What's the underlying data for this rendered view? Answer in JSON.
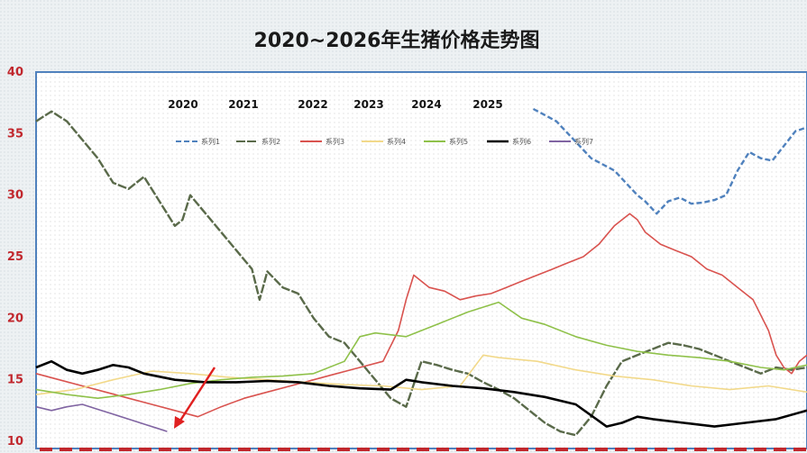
{
  "chart_data": {
    "type": "line",
    "title": "2020~2026年生猪价格走势图",
    "ylim": [
      10,
      40
    ],
    "y_ticks": [
      "10",
      "15",
      "20",
      "25",
      "30",
      "35",
      "40"
    ],
    "year_labels": [
      "2020",
      "2021",
      "2022",
      "2023",
      "2024",
      "2025"
    ],
    "x_range": [
      0,
      100
    ],
    "series": [
      {
        "name": "系列1",
        "color": "#4f81bd",
        "dash": "6,3",
        "x": [
          64.5,
          66,
          67.5,
          69,
          70.5,
          72,
          73.5,
          75,
          76.5,
          78,
          79,
          80.5,
          82,
          83.5,
          85,
          86.5,
          88,
          89.5,
          91,
          92.5,
          94,
          95.5,
          97,
          98.5,
          100
        ],
        "y": [
          37,
          36.5,
          36,
          35,
          34,
          33,
          32.5,
          32,
          31,
          30,
          29.5,
          28.5,
          29.5,
          29.8,
          29.3,
          29.4,
          29.6,
          30,
          32,
          33.5,
          33,
          32.8,
          34,
          35.2,
          35.5
        ]
      },
      {
        "name": "系列2",
        "color": "#5a6a4a",
        "dash": "10,2",
        "x": [
          0,
          2,
          4,
          6,
          8,
          10,
          12,
          14,
          16,
          18,
          19,
          20,
          22,
          24,
          26,
          28,
          29,
          30,
          32,
          34,
          36,
          38,
          40,
          42,
          44,
          46,
          48,
          50,
          52,
          54,
          56,
          58,
          60,
          62,
          64,
          66,
          68,
          70,
          72,
          74,
          76,
          78,
          80,
          82,
          84,
          86,
          88,
          90,
          92,
          94,
          96,
          98,
          100
        ],
        "y": [
          36,
          36.8,
          36,
          34.5,
          33,
          31,
          30.5,
          31.5,
          29.5,
          27.5,
          28,
          30,
          28.5,
          27,
          25.5,
          24,
          21.5,
          23.8,
          22.5,
          22,
          20,
          18.5,
          18,
          16.5,
          15,
          13.5,
          12.8,
          16.5,
          16.2,
          15.8,
          15.5,
          14.8,
          14.2,
          13.5,
          12.5,
          11.5,
          10.8,
          10.5,
          12,
          14.5,
          16.5,
          17,
          17.5,
          18,
          17.8,
          17.5,
          17,
          16.5,
          16,
          15.5,
          16,
          15.8,
          16
        ]
      },
      {
        "name": "系列3",
        "color": "#d9534f",
        "dash": "",
        "x": [
          0,
          3,
          6,
          9,
          12,
          15,
          18,
          21,
          24,
          27,
          30,
          33,
          36,
          39,
          42,
          45,
          47,
          48,
          49,
          51,
          53,
          55,
          57,
          59,
          61,
          63,
          65,
          67,
          69,
          71,
          73,
          75,
          77,
          78,
          79,
          81,
          83,
          85,
          87,
          89,
          91,
          93,
          95,
          96,
          97,
          98,
          99,
          100
        ],
        "y": [
          15.5,
          15,
          14.5,
          14,
          13.5,
          13,
          12.5,
          12,
          12.8,
          13.5,
          14,
          14.5,
          15,
          15.5,
          16,
          16.5,
          19,
          21.5,
          23.5,
          22.5,
          22.2,
          21.5,
          21.8,
          22,
          22.5,
          23,
          23.5,
          24,
          24.5,
          25,
          26,
          27.5,
          28.5,
          28,
          27,
          26,
          25.5,
          25,
          24,
          23.5,
          22.5,
          21.5,
          19,
          17,
          16,
          15.5,
          16.5,
          17
        ]
      },
      {
        "name": "系列4",
        "color": "#f2d98a",
        "dash": "",
        "x": [
          0,
          5,
          10,
          15,
          20,
          25,
          30,
          35,
          40,
          45,
          50,
          55,
          58,
          60,
          65,
          70,
          75,
          80,
          85,
          90,
          95,
          100
        ],
        "y": [
          13.8,
          14.2,
          15,
          15.7,
          15.5,
          15.2,
          15,
          14.8,
          14.6,
          14.5,
          14.2,
          14.5,
          17,
          16.8,
          16.5,
          15.8,
          15.3,
          15,
          14.5,
          14.2,
          14.5,
          14
        ]
      },
      {
        "name": "系列5",
        "color": "#8fc14a",
        "dash": "",
        "x": [
          0,
          4,
          8,
          12,
          16,
          20,
          24,
          28,
          32,
          36,
          40,
          42,
          44,
          48,
          52,
          56,
          60,
          63,
          66,
          70,
          74,
          78,
          82,
          86,
          90,
          94,
          97,
          100
        ],
        "y": [
          14.2,
          13.8,
          13.5,
          13.8,
          14.2,
          14.7,
          15,
          15.2,
          15.3,
          15.5,
          16.5,
          18.5,
          18.8,
          18.5,
          19.5,
          20.5,
          21.3,
          20,
          19.5,
          18.5,
          17.8,
          17.3,
          17,
          16.8,
          16.5,
          16,
          15.8,
          16.2
        ]
      },
      {
        "name": "系列6",
        "color": "#000000",
        "dash": "",
        "x": [
          0,
          2,
          4,
          6,
          8,
          10,
          12,
          14,
          18,
          22,
          26,
          30,
          34,
          38,
          42,
          46,
          48,
          50,
          54,
          58,
          62,
          66,
          70,
          74,
          76,
          78,
          80,
          84,
          88,
          92,
          96,
          100
        ],
        "y": [
          16,
          16.5,
          15.8,
          15.5,
          15.8,
          16.2,
          16,
          15.5,
          15,
          14.8,
          14.8,
          14.9,
          14.8,
          14.5,
          14.3,
          14.2,
          15,
          14.8,
          14.5,
          14.3,
          14,
          13.6,
          13,
          11.2,
          11.5,
          12,
          11.8,
          11.5,
          11.2,
          11.5,
          11.8,
          12.5
        ]
      },
      {
        "name": "系列7",
        "color": "#8064a2",
        "dash": "",
        "x": [
          0,
          2,
          4,
          6,
          8,
          10,
          12,
          14,
          16,
          17
        ],
        "y": [
          12.8,
          12.5,
          12.8,
          13,
          12.6,
          12.2,
          11.8,
          11.4,
          11,
          10.8
        ]
      }
    ]
  }
}
